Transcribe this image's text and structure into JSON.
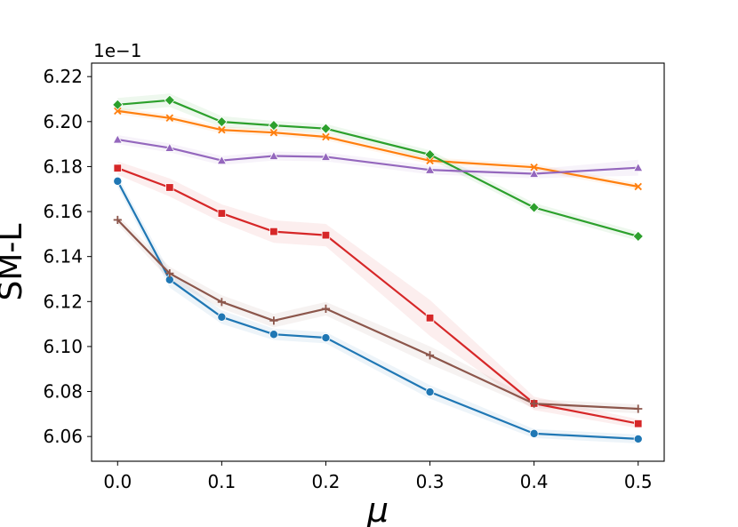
{
  "chart_data": {
    "type": "line",
    "title": "",
    "xlabel": "μ",
    "ylabel": "SM-L",
    "y_scale_label": "1e−1",
    "x": [
      0.0,
      0.05,
      0.1,
      0.15,
      0.2,
      0.3,
      0.4,
      0.5
    ],
    "xlim": [
      -0.025,
      0.525
    ],
    "ylim": [
      6.049,
      6.226
    ],
    "x_ticks": [
      0.0,
      0.1,
      0.2,
      0.3,
      0.4,
      0.5
    ],
    "x_tick_labels": [
      "0.0",
      "0.1",
      "0.2",
      "0.3",
      "0.4",
      "0.5"
    ],
    "y_ticks": [
      6.06,
      6.08,
      6.1,
      6.12,
      6.14,
      6.16,
      6.18,
      6.2,
      6.22
    ],
    "y_tick_labels": [
      "6.06",
      "6.08",
      "6.10",
      "6.12",
      "6.14",
      "6.16",
      "6.18",
      "6.20",
      "6.22"
    ],
    "grid": false,
    "legend": "none",
    "series": [
      {
        "name": "series-1",
        "color": "#1f77b4",
        "marker": "circle",
        "values": [
          6.1735,
          6.1297,
          6.1131,
          6.1054,
          6.1039,
          6.0798,
          6.0613,
          6.0589
        ],
        "band": [
          0.0025,
          0.0035,
          0.003,
          0.0025,
          0.0025,
          0.003,
          0.002,
          0.002
        ]
      },
      {
        "name": "series-2",
        "color": "#ff7f0e",
        "marker": "x",
        "values": [
          6.2047,
          6.2016,
          6.1963,
          6.1951,
          6.1932,
          6.1826,
          6.1797,
          6.1711
        ],
        "band": [
          0.0015,
          0.0015,
          0.0015,
          0.0015,
          0.0015,
          0.0015,
          0.0015,
          0.0015
        ]
      },
      {
        "name": "series-3",
        "color": "#2ca02c",
        "marker": "diamond",
        "values": [
          6.2075,
          6.2095,
          6.1999,
          6.1983,
          6.1969,
          6.1853,
          6.1618,
          6.149
        ],
        "band": [
          0.003,
          0.003,
          0.0025,
          0.002,
          0.002,
          0.002,
          0.002,
          0.002
        ]
      },
      {
        "name": "series-4",
        "color": "#d62728",
        "marker": "square",
        "values": [
          6.1793,
          6.1707,
          6.1592,
          6.1511,
          6.1495,
          6.1127,
          6.0747,
          6.0657
        ],
        "band": [
          0.003,
          0.004,
          0.004,
          0.005,
          0.005,
          0.008,
          0.003,
          0.002
        ]
      },
      {
        "name": "series-5",
        "color": "#9467bd",
        "marker": "triangle",
        "values": [
          6.192,
          6.1883,
          6.1827,
          6.1847,
          6.1843,
          6.1785,
          6.1768,
          6.1795
        ],
        "band": [
          0.002,
          0.002,
          0.002,
          0.002,
          0.002,
          0.002,
          0.002,
          0.0035
        ]
      },
      {
        "name": "series-6",
        "color": "#8c564b",
        "marker": "plus",
        "values": [
          6.1563,
          6.1325,
          6.1198,
          6.1115,
          6.1168,
          6.0961,
          6.0746,
          6.0723
        ],
        "band": [
          0.002,
          0.003,
          0.003,
          0.003,
          0.003,
          0.004,
          0.002,
          0.002
        ]
      }
    ]
  }
}
